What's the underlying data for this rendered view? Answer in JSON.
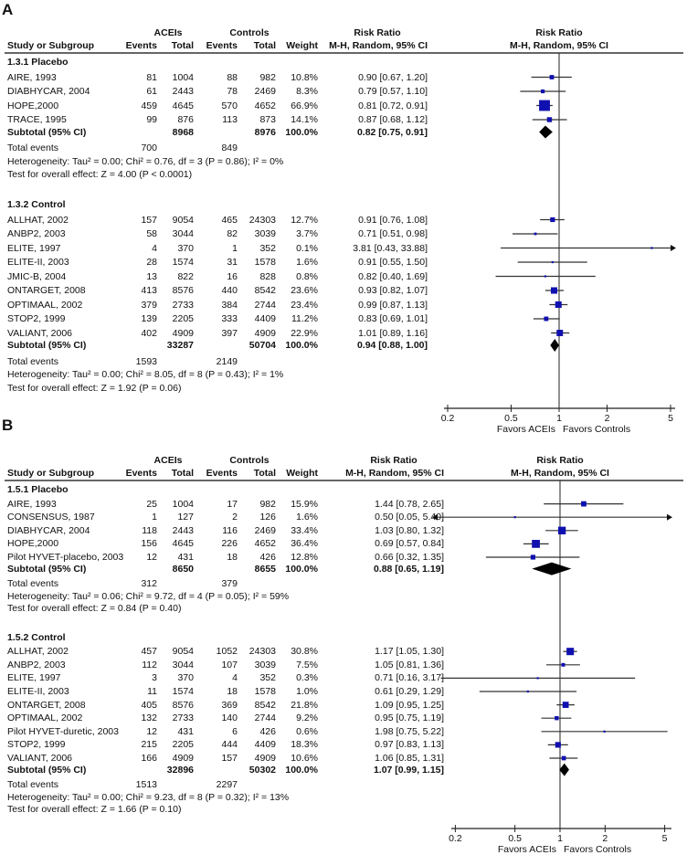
{
  "chart_data": [
    {
      "type": "forest",
      "panel": "A",
      "header": {
        "group1": "ACEIs",
        "group2": "Controls",
        "effect_measure": "Risk Ratio",
        "method": "M-H, Random, 95% CI",
        "col_study": "Study or Subgroup",
        "col_events": "Events",
        "col_total": "Total",
        "col_weight": "Weight"
      },
      "subgroups": [
        {
          "title": "1.3.1 Placebo",
          "studies": [
            {
              "name": "AIRE, 1993",
              "e1": 81,
              "t1": 1004,
              "e2": 88,
              "t2": 982,
              "weight": "10.8%",
              "rr": 0.9,
              "lo": 0.67,
              "hi": 1.2,
              "ci_text": "0.90 [0.67, 1.20]"
            },
            {
              "name": "DIABHYCAR, 2004",
              "e1": 61,
              "t1": 2443,
              "e2": 78,
              "t2": 2469,
              "weight": "8.3%",
              "rr": 0.79,
              "lo": 0.57,
              "hi": 1.1,
              "ci_text": "0.79 [0.57, 1.10]"
            },
            {
              "name": "HOPE,2000",
              "e1": 459,
              "t1": 4645,
              "e2": 570,
              "t2": 4652,
              "weight": "66.9%",
              "rr": 0.81,
              "lo": 0.72,
              "hi": 0.91,
              "ci_text": "0.81 [0.72, 0.91]"
            },
            {
              "name": "TRACE, 1995",
              "e1": 99,
              "t1": 876,
              "e2": 113,
              "t2": 873,
              "weight": "14.1%",
              "rr": 0.87,
              "lo": 0.68,
              "hi": 1.12,
              "ci_text": "0.87 [0.68, 1.12]"
            }
          ],
          "subtotal": {
            "label": "Subtotal (95% CI)",
            "t1": 8968,
            "t2": 8976,
            "weight": "100.0%",
            "rr": 0.82,
            "lo": 0.75,
            "hi": 0.91,
            "ci_text": "0.82 [0.75, 0.91]"
          },
          "total_events": {
            "label": "Total events",
            "e1": 700,
            "e2": 849
          },
          "heterogeneity": "Heterogeneity: Tau² = 0.00; Chi² = 0.76, df = 3 (P = 0.86); I² = 0%",
          "overall_effect": "Test for overall effect: Z = 4.00 (P < 0.0001)"
        },
        {
          "title": "1.3.2 Control",
          "studies": [
            {
              "name": "ALLHAT, 2002",
              "e1": 157,
              "t1": 9054,
              "e2": 465,
              "t2": 24303,
              "weight": "12.7%",
              "rr": 0.91,
              "lo": 0.76,
              "hi": 1.08,
              "ci_text": "0.91 [0.76, 1.08]"
            },
            {
              "name": "ANBP2, 2003",
              "e1": 58,
              "t1": 3044,
              "e2": 82,
              "t2": 3039,
              "weight": "3.7%",
              "rr": 0.71,
              "lo": 0.51,
              "hi": 0.98,
              "ci_text": "0.71 [0.51, 0.98]"
            },
            {
              "name": "ELITE, 1997",
              "e1": 4,
              "t1": 370,
              "e2": 1,
              "t2": 352,
              "weight": "0.1%",
              "rr": 3.81,
              "lo": 0.43,
              "hi": 33.88,
              "ci_text": "3.81 [0.43, 33.88]"
            },
            {
              "name": "ELITE-II, 2003",
              "e1": 28,
              "t1": 1574,
              "e2": 31,
              "t2": 1578,
              "weight": "1.6%",
              "rr": 0.91,
              "lo": 0.55,
              "hi": 1.5,
              "ci_text": "0.91 [0.55, 1.50]"
            },
            {
              "name": "JMIC-B, 2004",
              "e1": 13,
              "t1": 822,
              "e2": 16,
              "t2": 828,
              "weight": "0.8%",
              "rr": 0.82,
              "lo": 0.4,
              "hi": 1.69,
              "ci_text": "0.82 [0.40, 1.69]"
            },
            {
              "name": "ONTARGET, 2008",
              "e1": 413,
              "t1": 8576,
              "e2": 440,
              "t2": 8542,
              "weight": "23.6%",
              "rr": 0.93,
              "lo": 0.82,
              "hi": 1.07,
              "ci_text": "0.93 [0.82, 1.07]"
            },
            {
              "name": "OPTIMAAL, 2002",
              "e1": 379,
              "t1": 2733,
              "e2": 384,
              "t2": 2744,
              "weight": "23.4%",
              "rr": 0.99,
              "lo": 0.87,
              "hi": 1.13,
              "ci_text": "0.99 [0.87, 1.13]"
            },
            {
              "name": "STOP2, 1999",
              "e1": 139,
              "t1": 2205,
              "e2": 333,
              "t2": 4409,
              "weight": "11.2%",
              "rr": 0.83,
              "lo": 0.69,
              "hi": 1.01,
              "ci_text": "0.83 [0.69, 1.01]"
            },
            {
              "name": "VALIANT, 2006",
              "e1": 402,
              "t1": 4909,
              "e2": 397,
              "t2": 4909,
              "weight": "22.9%",
              "rr": 1.01,
              "lo": 0.89,
              "hi": 1.16,
              "ci_text": "1.01 [0.89, 1.16]"
            }
          ],
          "subtotal": {
            "label": "Subtotal (95% CI)",
            "t1": 33287,
            "t2": 50704,
            "weight": "100.0%",
            "rr": 0.94,
            "lo": 0.88,
            "hi": 1.0,
            "ci_text": "0.94 [0.88, 1.00]"
          },
          "total_events": {
            "label": "Total events",
            "e1": 1593,
            "e2": 2149
          },
          "heterogeneity": "Heterogeneity: Tau² = 0.00; Chi² = 8.05, df = 8 (P = 0.43); I² = 1%",
          "overall_effect": "Test for overall effect: Z = 1.92 (P = 0.06)"
        }
      ],
      "axis": {
        "scale": "log",
        "ticks": [
          0.2,
          0.5,
          1,
          2,
          5
        ],
        "tick_labels": [
          "0.2",
          "0.5",
          "1",
          "2",
          "5"
        ],
        "xlim": [
          0.2,
          5
        ],
        "left_label": "Favors ACEIs",
        "right_label": "Favors Controls"
      }
    },
    {
      "type": "forest",
      "panel": "B",
      "header": {
        "group1": "ACEIs",
        "group2": "Controls",
        "effect_measure": "Risk Ratio",
        "method": "M-H, Random, 95% CI",
        "col_study": "Study or Subgroup",
        "col_events": "Events",
        "col_total": "Total",
        "col_weight": "Weight"
      },
      "subgroups": [
        {
          "title": "1.5.1 Placebo",
          "studies": [
            {
              "name": "AIRE, 1993",
              "e1": 25,
              "t1": 1004,
              "e2": 17,
              "t2": 982,
              "weight": "15.9%",
              "rr": 1.44,
              "lo": 0.78,
              "hi": 2.65,
              "ci_text": "1.44 [0.78, 2.65]"
            },
            {
              "name": "CONSENSUS, 1987",
              "e1": 1,
              "t1": 127,
              "e2": 2,
              "t2": 126,
              "weight": "1.6%",
              "rr": 0.5,
              "lo": 0.05,
              "hi": 5.4,
              "ci_text": "0.50 [0.05, 5.40]"
            },
            {
              "name": "DIABHYCAR, 2004",
              "e1": 118,
              "t1": 2443,
              "e2": 116,
              "t2": 2469,
              "weight": "33.4%",
              "rr": 1.03,
              "lo": 0.8,
              "hi": 1.32,
              "ci_text": "1.03 [0.80, 1.32]"
            },
            {
              "name": "HOPE,2000",
              "e1": 156,
              "t1": 4645,
              "e2": 226,
              "t2": 4652,
              "weight": "36.4%",
              "rr": 0.69,
              "lo": 0.57,
              "hi": 0.84,
              "ci_text": "0.69 [0.57, 0.84]"
            },
            {
              "name": "Pilot HYVET-placebo, 2003",
              "e1": 12,
              "t1": 431,
              "e2": 18,
              "t2": 426,
              "weight": "12.8%",
              "rr": 0.66,
              "lo": 0.32,
              "hi": 1.35,
              "ci_text": "0.66 [0.32, 1.35]"
            }
          ],
          "subtotal": {
            "label": "Subtotal (95% CI)",
            "t1": 8650,
            "t2": 8655,
            "weight": "100.0%",
            "rr": 0.88,
            "lo": 0.65,
            "hi": 1.19,
            "ci_text": "0.88 [0.65, 1.19]"
          },
          "total_events": {
            "label": "Total events",
            "e1": 312,
            "e2": 379
          },
          "heterogeneity": "Heterogeneity: Tau² = 0.06; Chi² = 9.72, df = 4 (P = 0.05); I² = 59%",
          "overall_effect": "Test for overall effect: Z = 0.84 (P = 0.40)"
        },
        {
          "title": "1.5.2 Control",
          "studies": [
            {
              "name": "ALLHAT, 2002",
              "e1": 457,
              "t1": 9054,
              "e2": 1052,
              "t2": 24303,
              "weight": "30.8%",
              "rr": 1.17,
              "lo": 1.05,
              "hi": 1.3,
              "ci_text": "1.17 [1.05, 1.30]"
            },
            {
              "name": "ANBP2, 2003",
              "e1": 112,
              "t1": 3044,
              "e2": 107,
              "t2": 3039,
              "weight": "7.5%",
              "rr": 1.05,
              "lo": 0.81,
              "hi": 1.36,
              "ci_text": "1.05 [0.81, 1.36]"
            },
            {
              "name": "ELITE, 1997",
              "e1": 3,
              "t1": 370,
              "e2": 4,
              "t2": 352,
              "weight": "0.3%",
              "rr": 0.71,
              "lo": 0.16,
              "hi": 3.17,
              "ci_text": "0.71 [0.16, 3.17]"
            },
            {
              "name": "ELITE-II, 2003",
              "e1": 11,
              "t1": 1574,
              "e2": 18,
              "t2": 1578,
              "weight": "1.0%",
              "rr": 0.61,
              "lo": 0.29,
              "hi": 1.29,
              "ci_text": "0.61 [0.29, 1.29]"
            },
            {
              "name": "ONTARGET, 2008",
              "e1": 405,
              "t1": 8576,
              "e2": 369,
              "t2": 8542,
              "weight": "21.8%",
              "rr": 1.09,
              "lo": 0.95,
              "hi": 1.25,
              "ci_text": "1.09 [0.95, 1.25]"
            },
            {
              "name": "OPTIMAAL, 2002",
              "e1": 132,
              "t1": 2733,
              "e2": 140,
              "t2": 2744,
              "weight": "9.2%",
              "rr": 0.95,
              "lo": 0.75,
              "hi": 1.19,
              "ci_text": "0.95 [0.75, 1.19]"
            },
            {
              "name": "Pilot HYVET-duretic, 2003",
              "e1": 12,
              "t1": 431,
              "e2": 6,
              "t2": 426,
              "weight": "0.6%",
              "rr": 1.98,
              "lo": 0.75,
              "hi": 5.22,
              "ci_text": "1.98 [0.75, 5.22]"
            },
            {
              "name": "STOP2, 1999",
              "e1": 215,
              "t1": 2205,
              "e2": 444,
              "t2": 4409,
              "weight": "18.3%",
              "rr": 0.97,
              "lo": 0.83,
              "hi": 1.13,
              "ci_text": "0.97 [0.83, 1.13]"
            },
            {
              "name": "VALIANT, 2006",
              "e1": 166,
              "t1": 4909,
              "e2": 157,
              "t2": 4909,
              "weight": "10.6%",
              "rr": 1.06,
              "lo": 0.85,
              "hi": 1.31,
              "ci_text": "1.06 [0.85, 1.31]"
            }
          ],
          "subtotal": {
            "label": "Subtotal (95% CI)",
            "t1": 32896,
            "t2": 50302,
            "weight": "100.0%",
            "rr": 1.07,
            "lo": 0.99,
            "hi": 1.15,
            "ci_text": "1.07 [0.99, 1.15]"
          },
          "total_events": {
            "label": "Total events",
            "e1": 1513,
            "e2": 2297
          },
          "heterogeneity": "Heterogeneity: Tau² = 0.00; Chi² = 9.23, df = 8 (P = 0.32); I² = 13%",
          "overall_effect": "Test for overall effect: Z = 1.66 (P = 0.10)"
        }
      ],
      "axis": {
        "scale": "log",
        "ticks": [
          0.2,
          0.5,
          1,
          2,
          5
        ],
        "tick_labels": [
          "0.2",
          "0.5",
          "1",
          "2",
          "5"
        ],
        "xlim": [
          0.2,
          5
        ],
        "left_label": "Favors ACEIs",
        "right_label": "Favors Controls"
      }
    }
  ],
  "panels": {
    "a_label": "A",
    "b_label": "B"
  },
  "colors": {
    "marker": "#1010b0",
    "diamond": "#000000",
    "ci_line": "#333333"
  }
}
